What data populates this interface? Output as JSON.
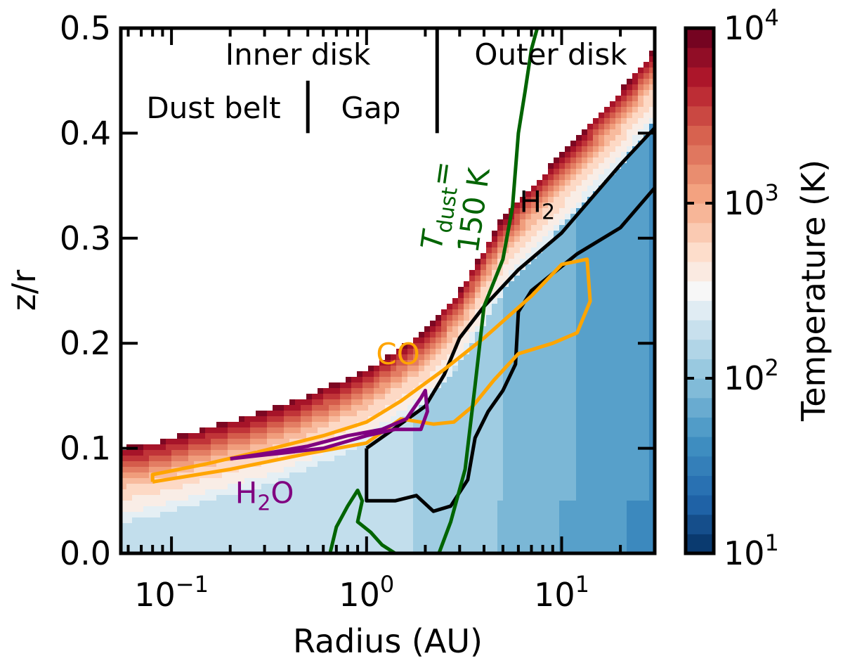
{
  "chart_data": {
    "type": "heatmap",
    "xlabel": "Radius (AU)",
    "ylabel": "z/r",
    "x_scale": "log",
    "xlim": [
      0.055,
      30
    ],
    "ylim": [
      0,
      0.5
    ],
    "x_ticks": [
      {
        "value": 0.1,
        "base": "10",
        "exp": "−1"
      },
      {
        "value": 1,
        "base": "10",
        "exp": "0"
      },
      {
        "value": 10,
        "base": "10",
        "exp": "1"
      }
    ],
    "y_ticks": [
      {
        "value": 0.0,
        "label": "0.0"
      },
      {
        "value": 0.1,
        "label": "0.1"
      },
      {
        "value": 0.2,
        "label": "0.2"
      },
      {
        "value": 0.3,
        "label": "0.3"
      },
      {
        "value": 0.4,
        "label": "0.4"
      },
      {
        "value": 0.5,
        "label": "0.5"
      }
    ],
    "colorbar": {
      "label": "Temperature (K)",
      "scale": "log",
      "range": [
        10,
        10000
      ],
      "colormap": "RdBu_r",
      "ticks": [
        {
          "value": 10,
          "base": "10",
          "exp": "1"
        },
        {
          "value": 100,
          "base": "10",
          "exp": "2"
        },
        {
          "value": 1000,
          "base": "10",
          "exp": "3"
        },
        {
          "value": 10000,
          "base": "10",
          "exp": "4"
        }
      ]
    },
    "region_labels": [
      {
        "text": "Inner disk"
      },
      {
        "text": "Outer disk"
      },
      {
        "text": "Dust belt"
      },
      {
        "text": "Gap"
      }
    ],
    "region_dividers": [
      {
        "x": 0.5,
        "y_range": [
          0.4,
          0.45
        ]
      },
      {
        "x": 2.3,
        "y_range": [
          0.4,
          0.5
        ]
      }
    ],
    "surface": [
      [
        0.055,
        0.1
      ],
      [
        0.08,
        0.105
      ],
      [
        0.1,
        0.11
      ],
      [
        0.2,
        0.126
      ],
      [
        0.3,
        0.135
      ],
      [
        0.5,
        0.15
      ],
      [
        1,
        0.175
      ],
      [
        2,
        0.212
      ],
      [
        3,
        0.25
      ],
      [
        5,
        0.32
      ],
      [
        10,
        0.38
      ],
      [
        20,
        0.44
      ],
      [
        30,
        0.48
      ]
    ],
    "contours": [
      {
        "name": "H",
        "name_sub": "2",
        "color": "#000000",
        "label_at": [
          7.5,
          0.325
        ],
        "points": [
          [
            1.0,
            0.1
          ],
          [
            1.3,
            0.115
          ],
          [
            2.0,
            0.14
          ],
          [
            2.5,
            0.17
          ],
          [
            3.0,
            0.205
          ],
          [
            4.0,
            0.235
          ],
          [
            6.0,
            0.27
          ],
          [
            10.0,
            0.305
          ],
          [
            20.0,
            0.37
          ],
          [
            30.0,
            0.405
          ]
        ]
      },
      {
        "name": "H",
        "name_sub": "2",
        "color": "#000000",
        "label_at": null,
        "points": [
          [
            1.0,
            0.1
          ],
          [
            1.0,
            0.05
          ],
          [
            1.4,
            0.05
          ],
          [
            1.8,
            0.055
          ],
          [
            2.2,
            0.04
          ],
          [
            2.7,
            0.045
          ],
          [
            3.3,
            0.07
          ],
          [
            3.6,
            0.11
          ],
          [
            4.2,
            0.135
          ],
          [
            5.0,
            0.155
          ],
          [
            5.8,
            0.18
          ],
          [
            6.0,
            0.23
          ],
          [
            7.0,
            0.25
          ],
          [
            12.0,
            0.285
          ],
          [
            20.0,
            0.31
          ],
          [
            30.0,
            0.348
          ]
        ]
      },
      {
        "name": "CO",
        "name_sub": "",
        "color": "#ffa500",
        "label_at": [
          1.45,
          0.18
        ],
        "points": [
          [
            0.08,
            0.068
          ],
          [
            0.08,
            0.075
          ],
          [
            0.15,
            0.085
          ],
          [
            0.3,
            0.098
          ],
          [
            0.6,
            0.112
          ],
          [
            1.0,
            0.125
          ],
          [
            1.5,
            0.145
          ],
          [
            2.5,
            0.175
          ],
          [
            4.0,
            0.205
          ],
          [
            7.0,
            0.245
          ],
          [
            10.0,
            0.275
          ],
          [
            13.5,
            0.28
          ],
          [
            14.0,
            0.24
          ],
          [
            12.0,
            0.21
          ],
          [
            9.0,
            0.2
          ],
          [
            6.0,
            0.19
          ],
          [
            4.5,
            0.165
          ],
          [
            3.5,
            0.14
          ],
          [
            2.8,
            0.125
          ],
          [
            2.2,
            0.123
          ],
          [
            1.5,
            0.128
          ],
          [
            1.0,
            0.105
          ],
          [
            0.5,
            0.095
          ],
          [
            0.2,
            0.08
          ],
          [
            0.08,
            0.068
          ]
        ]
      },
      {
        "name": "H",
        "name_sub": "2",
        "name_tail": "O",
        "color": "#800080",
        "label_at": [
          0.3,
          0.048
        ],
        "points": [
          [
            0.2,
            0.09
          ],
          [
            0.3,
            0.095
          ],
          [
            0.5,
            0.102
          ],
          [
            0.8,
            0.112
          ],
          [
            1.2,
            0.118
          ],
          [
            1.6,
            0.128
          ],
          [
            1.9,
            0.148
          ],
          [
            2.0,
            0.155
          ],
          [
            2.05,
            0.135
          ],
          [
            1.9,
            0.118
          ],
          [
            1.4,
            0.118
          ],
          [
            1.0,
            0.112
          ],
          [
            0.6,
            0.1
          ],
          [
            0.35,
            0.095
          ],
          [
            0.2,
            0.09
          ]
        ]
      },
      {
        "name": "T_dust",
        "label_at": [
          2.6,
          0.33
        ],
        "label_main": "T",
        "label_sub": "dust",
        "label_tail": "=",
        "label_value": "150 K",
        "color": "#006400",
        "points": [
          [
            2.35,
            0.0
          ],
          [
            2.7,
            0.03
          ],
          [
            3.2,
            0.08
          ],
          [
            3.6,
            0.16
          ],
          [
            4.0,
            0.235
          ],
          [
            5.0,
            0.28
          ],
          [
            5.6,
            0.33
          ],
          [
            6.0,
            0.4
          ],
          [
            6.5,
            0.44
          ],
          [
            7.0,
            0.48
          ],
          [
            7.5,
            0.5
          ]
        ]
      },
      {
        "name": "dust_islands",
        "color": "#006400",
        "label_at": null,
        "points": [
          [
            0.65,
            0.0
          ],
          [
            0.7,
            0.025
          ],
          [
            0.8,
            0.045
          ],
          [
            0.9,
            0.06
          ],
          [
            0.95,
            0.05
          ],
          [
            0.9,
            0.03
          ],
          [
            1.05,
            0.02
          ],
          [
            1.2,
            0.008
          ],
          [
            1.4,
            0.0
          ]
        ]
      }
    ]
  }
}
